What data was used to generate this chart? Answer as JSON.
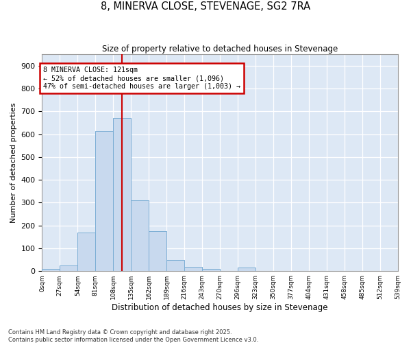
{
  "title1": "8, MINERVA CLOSE, STEVENAGE, SG2 7RA",
  "title2": "Size of property relative to detached houses in Stevenage",
  "xlabel": "Distribution of detached houses by size in Stevenage",
  "ylabel": "Number of detached properties",
  "bar_color": "#c8d9ee",
  "bar_edge_color": "#7aadd4",
  "background_color": "#dde8f5",
  "fig_background": "#ffffff",
  "bin_edges": [
    0,
    27,
    54,
    81,
    108,
    135,
    162,
    189,
    216,
    243,
    270,
    297,
    324,
    351,
    378,
    405,
    432,
    459,
    486,
    513,
    540
  ],
  "bin_labels": [
    "0sqm",
    "27sqm",
    "54sqm",
    "81sqm",
    "108sqm",
    "135sqm",
    "162sqm",
    "189sqm",
    "216sqm",
    "243sqm",
    "270sqm",
    "296sqm",
    "323sqm",
    "350sqm",
    "377sqm",
    "404sqm",
    "431sqm",
    "458sqm",
    "485sqm",
    "512sqm",
    "539sqm"
  ],
  "counts": [
    10,
    25,
    170,
    615,
    670,
    310,
    175,
    50,
    20,
    10,
    0,
    15,
    0,
    0,
    0,
    0,
    0,
    0,
    0,
    0
  ],
  "vline_x": 121,
  "vline_color": "#cc0000",
  "annotation_text": "8 MINERVA CLOSE: 121sqm\n← 52% of detached houses are smaller (1,096)\n47% of semi-detached houses are larger (1,003) →",
  "annotation_box_color": "#ffffff",
  "annotation_box_edge": "#cc0000",
  "ylim": [
    0,
    950
  ],
  "yticks": [
    0,
    100,
    200,
    300,
    400,
    500,
    600,
    700,
    800,
    900
  ],
  "footnote1": "Contains HM Land Registry data © Crown copyright and database right 2025.",
  "footnote2": "Contains public sector information licensed under the Open Government Licence v3.0."
}
